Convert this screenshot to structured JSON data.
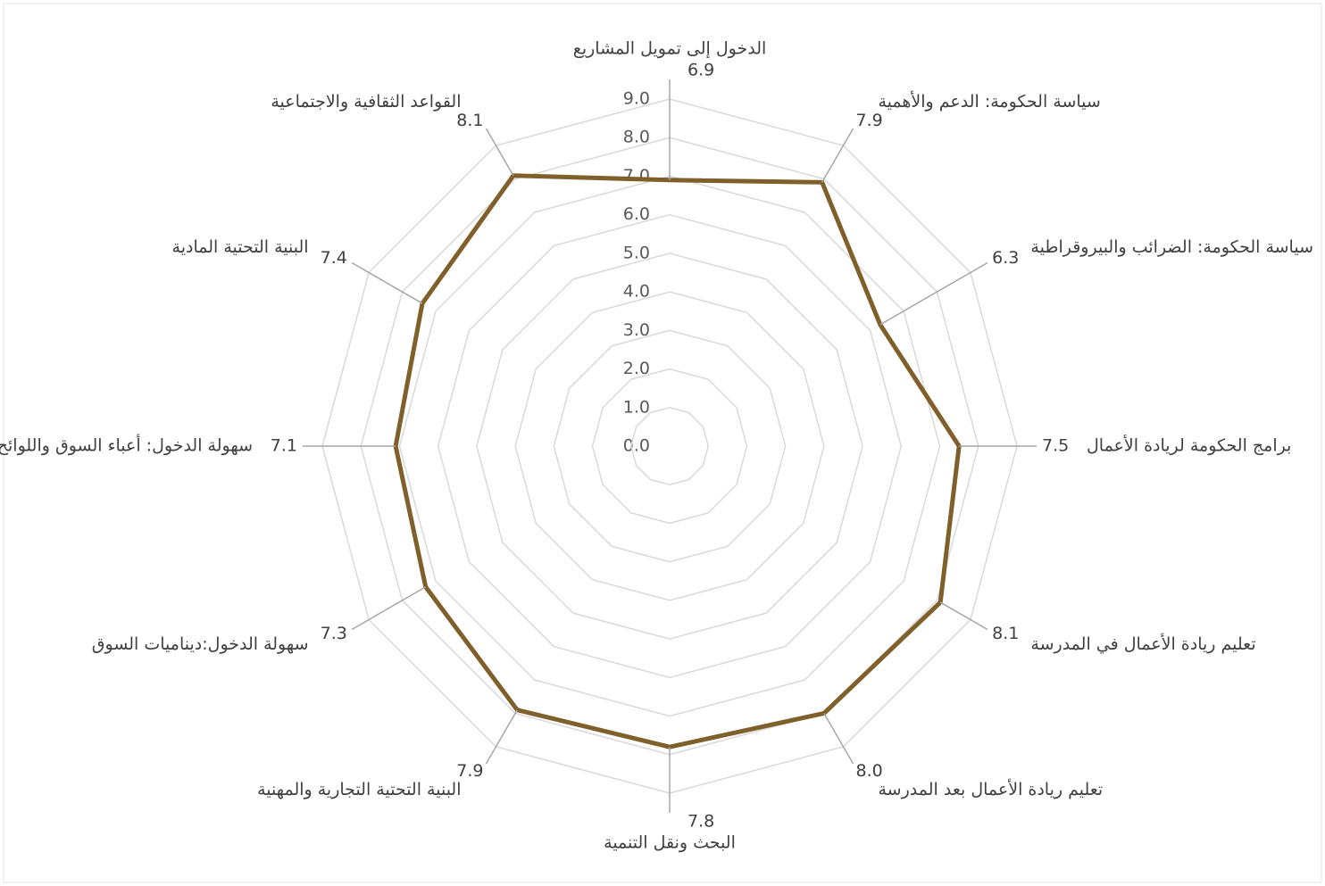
{
  "chart_data": {
    "type": "radar",
    "categories": [
      "الدخول إلى تمويل المشاريع",
      "سياسة الحكومة: الدعم والأهمية",
      "سياسة الحكومة: الضرائب والبيروقراطية",
      "برامج الحكومة لريادة الأعمال",
      "تعليم ريادة الأعمال في المدرسة",
      "تعليم ريادة الأعمال بعد المدرسة",
      "البحث ونقل التنمية",
      "البنية التحتية التجارية والمهنية",
      "سهولة الدخول:ديناميات السوق",
      "سهولة الدخول: أعباء السوق واللوائح",
      "البنية التحتية المادية",
      "القواعد الثقافية والاجتماعية"
    ],
    "values": [
      6.9,
      7.9,
      6.3,
      7.5,
      8.1,
      8.0,
      7.8,
      7.9,
      7.3,
      7.1,
      7.4,
      8.1
    ],
    "value_labels": [
      "6.9",
      "7.9",
      "6.3",
      "7.5",
      "8.1",
      "8.0",
      "7.8",
      "7.9",
      "7.3",
      "7.1",
      "7.4",
      "8.1"
    ],
    "color": "#7f5f2a",
    "ylim": [
      0,
      9
    ],
    "yticks": [
      {
        "value": 0,
        "label": "0.0"
      },
      {
        "value": 1,
        "label": "1.0"
      },
      {
        "value": 2,
        "label": "2.0"
      },
      {
        "value": 3,
        "label": "3.0"
      },
      {
        "value": 4,
        "label": "4.0"
      },
      {
        "value": 5,
        "label": "5.0"
      },
      {
        "value": 6,
        "label": "6.0"
      },
      {
        "value": 7,
        "label": "7.0"
      },
      {
        "value": 8,
        "label": "8.0"
      },
      {
        "value": 9,
        "label": "9.0"
      }
    ],
    "grid": true
  }
}
